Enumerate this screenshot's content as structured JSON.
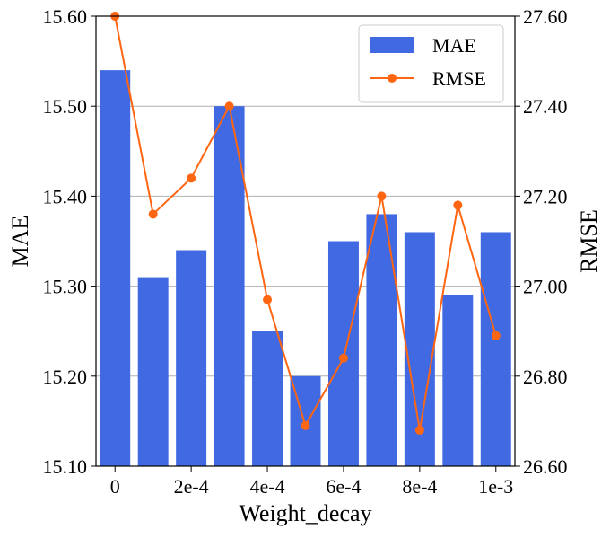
{
  "chart_data": {
    "type": "bar",
    "xlabel": "Weight_decay",
    "ylabel_left": "MAE",
    "ylabel_right": "RMSE",
    "x_positions": [
      0,
      1,
      2,
      3,
      4,
      5,
      6,
      7,
      8,
      9,
      10
    ],
    "x_tick_labels": [
      {
        "pos": 0,
        "label": "0"
      },
      {
        "pos": 2,
        "label": "2e-4"
      },
      {
        "pos": 4,
        "label": "4e-4"
      },
      {
        "pos": 6,
        "label": "6e-4"
      },
      {
        "pos": 8,
        "label": "8e-4"
      },
      {
        "pos": 10,
        "label": "1e-3"
      }
    ],
    "series": [
      {
        "name": "MAE",
        "kind": "bar",
        "axis": "left",
        "color": "#4169e1",
        "values": [
          15.54,
          15.31,
          15.34,
          15.5,
          15.25,
          15.2,
          15.35,
          15.38,
          15.36,
          15.29,
          15.36
        ]
      },
      {
        "name": "RMSE",
        "kind": "line",
        "axis": "right",
        "color": "#ff6611",
        "marker": "circle",
        "values": [
          27.6,
          27.16,
          27.24,
          27.4,
          26.97,
          26.69,
          26.84,
          27.2,
          26.68,
          27.18,
          26.89
        ]
      }
    ],
    "ylim_left": [
      15.1,
      15.6
    ],
    "ylim_right": [
      26.6,
      27.6
    ],
    "yticks_left": [
      "15.10",
      "15.20",
      "15.30",
      "15.40",
      "15.50",
      "15.60"
    ],
    "yticks_right": [
      "26.60",
      "26.80",
      "27.00",
      "27.20",
      "27.40",
      "27.60"
    ],
    "grid": "horizontal",
    "grid_color": "#b0b0b0",
    "legend": "top-right"
  }
}
